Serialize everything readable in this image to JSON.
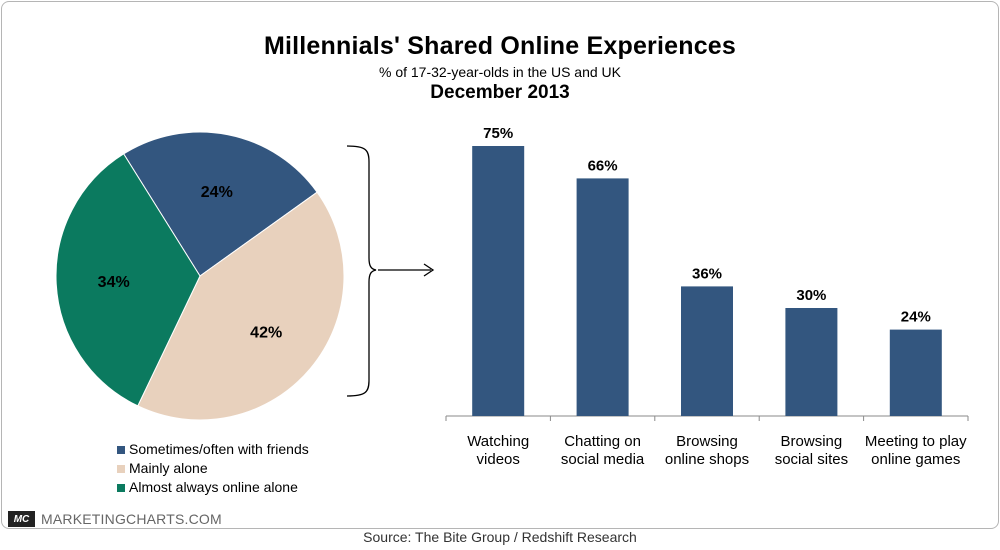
{
  "header": {
    "title": "Millennials' Shared Online Experiences",
    "subtitle": "% of 17-32-year-olds in the US and UK",
    "date": "December 2013"
  },
  "footer": {
    "brand_logo": "MC",
    "brand": "MARKETINGCHARTS.COM",
    "source": "Source: The Bite Group / Redshift Research"
  },
  "colors": {
    "navy": "#33567f",
    "beige": "#e8d1bd",
    "green": "#0b7a5f"
  },
  "chart_data": [
    {
      "type": "pie",
      "labels": [
        "Sometimes/often with friends",
        "Mainly alone",
        "Almost always online alone"
      ],
      "values": [
        24,
        42,
        34
      ],
      "value_labels": [
        "24%",
        "42%",
        "34%"
      ],
      "colors": [
        "#33567f",
        "#e8d1bd",
        "#0b7a5f"
      ],
      "legend_position": "bottom"
    },
    {
      "type": "bar",
      "categories": [
        "Watching videos",
        "Chatting on social media",
        "Browsing online shops",
        "Browsing social sites",
        "Meeting to play online games"
      ],
      "category_lines": [
        [
          "Watching",
          "videos"
        ],
        [
          "Chatting on",
          "social media"
        ],
        [
          "Browsing",
          "online shops"
        ],
        [
          "Browsing",
          "social sites"
        ],
        [
          "Meeting to play",
          "online games"
        ]
      ],
      "values": [
        75,
        66,
        36,
        30,
        24
      ],
      "value_labels": [
        "75%",
        "66%",
        "36%",
        "30%",
        "24%"
      ],
      "color": "#33567f",
      "ylim": [
        0,
        80
      ]
    }
  ]
}
